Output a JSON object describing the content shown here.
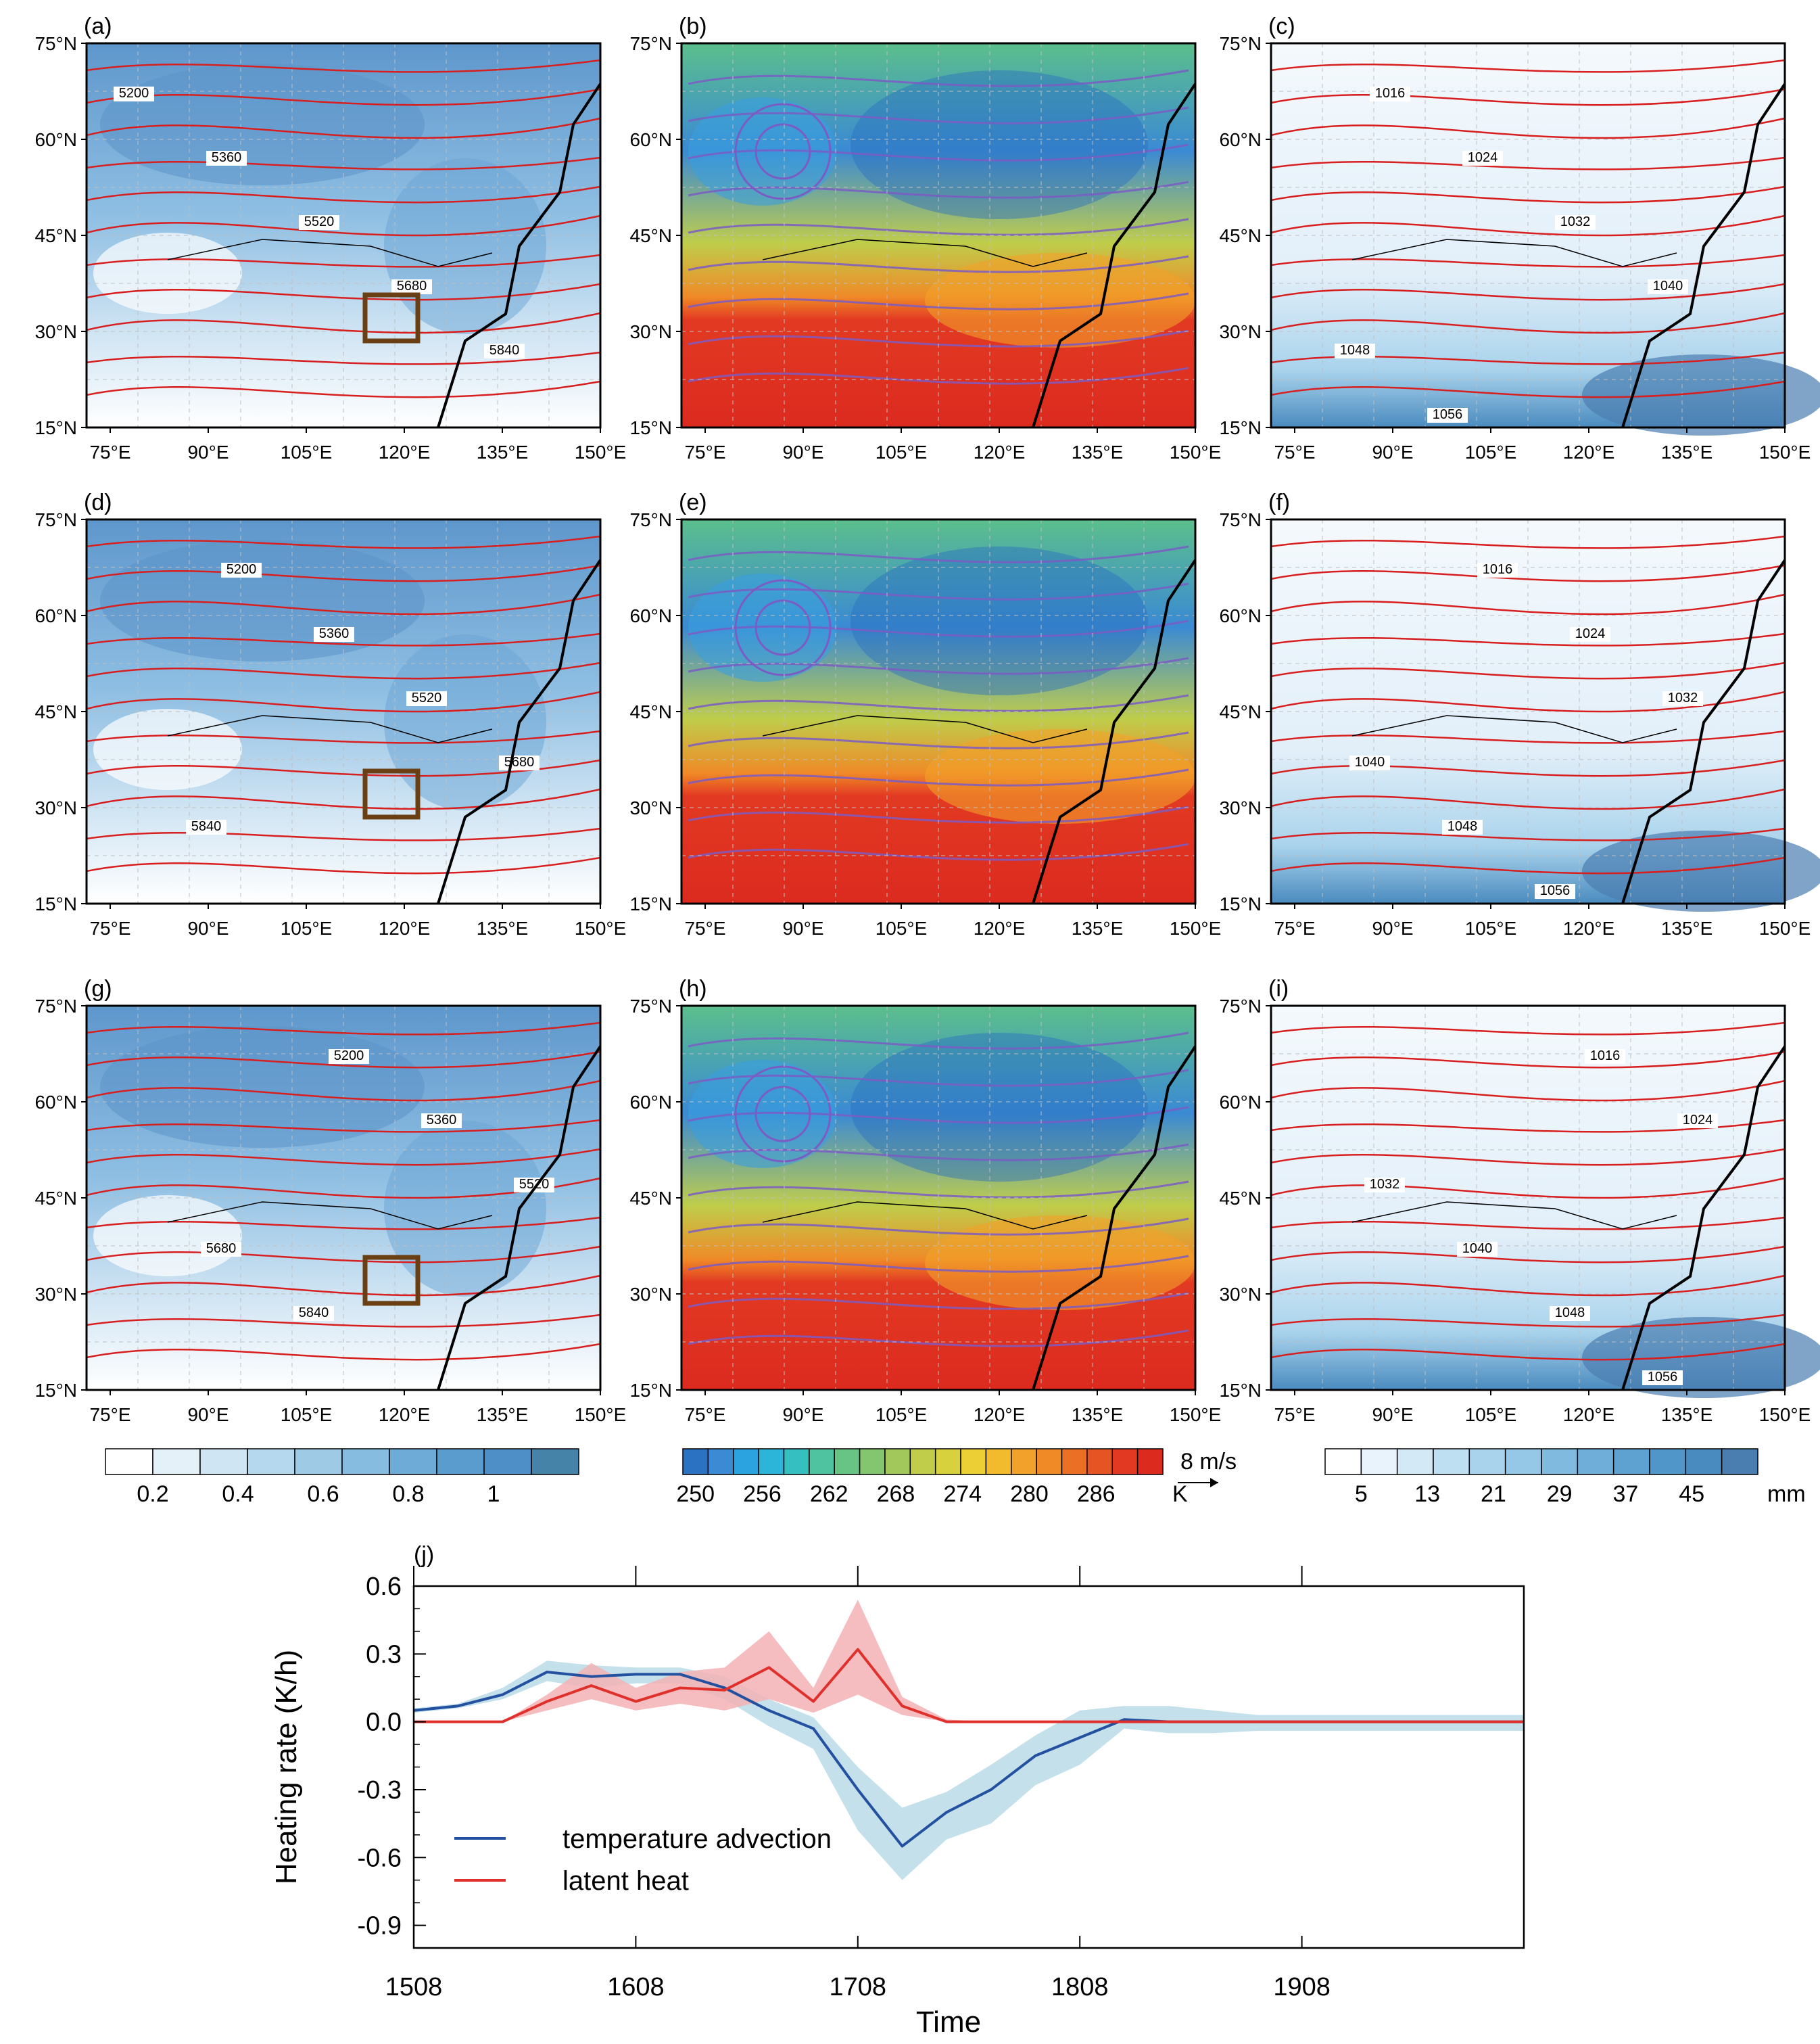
{
  "panels": [
    {
      "tag": "(a)",
      "type": "cloud"
    },
    {
      "tag": "(b)",
      "type": "temp"
    },
    {
      "tag": "(c)",
      "type": "precip"
    },
    {
      "tag": "(d)",
      "type": "cloud"
    },
    {
      "tag": "(e)",
      "type": "temp"
    },
    {
      "tag": "(f)",
      "type": "precip"
    },
    {
      "tag": "(g)",
      "type": "cloud"
    },
    {
      "tag": "(h)",
      "type": "temp"
    },
    {
      "tag": "(i)",
      "type": "precip"
    }
  ],
  "map_axes": {
    "lon_ticks": [
      "75°E",
      "90°E",
      "105°E",
      "120°E",
      "135°E",
      "150°E"
    ],
    "lat_ticks": [
      "75°N",
      "60°N",
      "45°N",
      "30°N",
      "15°N"
    ]
  },
  "contour_labels": {
    "cloud": [
      "5200",
      "5360",
      "5520",
      "5680",
      "5840"
    ],
    "precip": [
      "1016",
      "1024",
      "1032",
      "1040",
      "1048",
      "1056"
    ]
  },
  "colorbars": {
    "cloud": {
      "labels": [
        "0.2",
        "0.4",
        "0.6",
        "0.8",
        "1"
      ],
      "colors": [
        "#ffffff",
        "#e5f1f9",
        "#cfe5f3",
        "#b6d8ee",
        "#9ecae6",
        "#86bce0",
        "#6eacd7",
        "#5b9ccf",
        "#4d8fc6",
        "#4583a8"
      ]
    },
    "temp": {
      "labels": [
        "250",
        "256",
        "262",
        "268",
        "274",
        "280",
        "286"
      ],
      "unit": "K",
      "colors": [
        "#2b72c2",
        "#3a8ad4",
        "#2ba3e0",
        "#2cb5d8",
        "#35bfc0",
        "#4fc39f",
        "#68c484",
        "#84c56f",
        "#a2c85c",
        "#bfcd4b",
        "#d8d13e",
        "#ebcf35",
        "#f2bb2e",
        "#f2a22a",
        "#ef8a27",
        "#eb7025",
        "#e65424",
        "#e23a22",
        "#dc2a1f"
      ]
    },
    "precip": {
      "labels": [
        "5",
        "13",
        "21",
        "29",
        "37",
        "45"
      ],
      "unit": "mm",
      "colors": [
        "#ffffff",
        "#e8f3fb",
        "#d4e9f6",
        "#bedff1",
        "#a9d3ec",
        "#95c7e6",
        "#80badf",
        "#6eaed9",
        "#5ea2d2",
        "#5196c8",
        "#4a8bbf",
        "#4a7eb0"
      ]
    },
    "wind_vector_label": "8 m/s"
  },
  "chart_data": {
    "type": "line",
    "panel_tag": "(j)",
    "title": "",
    "xlabel": "Time",
    "ylabel": "Heating rate (K/h)",
    "xtick_labels": [
      "1508",
      "1608",
      "1708",
      "1808",
      "1908"
    ],
    "x": [
      0,
      1,
      2,
      3,
      4,
      5,
      6,
      7,
      8,
      9,
      10,
      11,
      12,
      13,
      14,
      15,
      16,
      17,
      18,
      19,
      20,
      21,
      22,
      23,
      24,
      25
    ],
    "ylim": [
      -1.0,
      0.6
    ],
    "yticks": [
      "0.6",
      "0.3",
      "0.0",
      "-0.3",
      "-0.6",
      "-0.9"
    ],
    "series": [
      {
        "name": "temperature advection",
        "color": "#2450a0",
        "band_color": "#b9dbe8",
        "values": [
          0.05,
          0.07,
          0.12,
          0.22,
          0.2,
          0.21,
          0.21,
          0.15,
          0.05,
          -0.03,
          -0.3,
          -0.55,
          -0.4,
          -0.3,
          -0.15,
          -0.07,
          0.01,
          0.0,
          0.0,
          0.0,
          0.0,
          0.0,
          0.0,
          0.0,
          0.0,
          0.0
        ],
        "band_upper": [
          0.06,
          0.08,
          0.15,
          0.27,
          0.25,
          0.24,
          0.24,
          0.2,
          0.1,
          0.02,
          -0.2,
          -0.38,
          -0.31,
          -0.19,
          -0.06,
          0.05,
          0.07,
          0.07,
          0.05,
          0.03,
          0.03,
          0.03,
          0.03,
          0.03,
          0.03,
          0.03
        ],
        "band_lower": [
          0.04,
          0.06,
          0.1,
          0.18,
          0.15,
          0.17,
          0.17,
          0.1,
          -0.02,
          -0.12,
          -0.48,
          -0.7,
          -0.52,
          -0.45,
          -0.28,
          -0.19,
          -0.03,
          -0.05,
          -0.05,
          -0.04,
          -0.04,
          -0.04,
          -0.04,
          -0.04,
          -0.04,
          -0.04
        ]
      },
      {
        "name": "latent heat",
        "color": "#e0302c",
        "band_color": "#f3b1b5",
        "values": [
          0.0,
          0.0,
          0.0,
          0.09,
          0.16,
          0.09,
          0.15,
          0.14,
          0.24,
          0.09,
          0.32,
          0.07,
          0.0,
          0.0,
          0.0,
          0.0,
          0.0,
          0.0,
          0.0,
          0.0,
          0.0,
          0.0,
          0.0,
          0.0,
          0.0,
          0.0
        ],
        "band_upper": [
          0.0,
          0.0,
          0.0,
          0.12,
          0.26,
          0.15,
          0.22,
          0.24,
          0.4,
          0.15,
          0.54,
          0.11,
          0.01,
          0.0,
          0.0,
          0.0,
          0.0,
          0.0,
          0.0,
          0.0,
          0.0,
          0.0,
          0.0,
          0.0,
          0.0,
          0.0
        ],
        "band_lower": [
          0.0,
          0.0,
          0.0,
          0.05,
          0.1,
          0.05,
          0.08,
          0.05,
          0.1,
          0.04,
          0.12,
          0.03,
          0.0,
          0.0,
          0.0,
          0.0,
          0.0,
          0.0,
          0.0,
          0.0,
          0.0,
          0.0,
          0.0,
          0.0,
          0.0,
          0.0
        ]
      }
    ]
  }
}
